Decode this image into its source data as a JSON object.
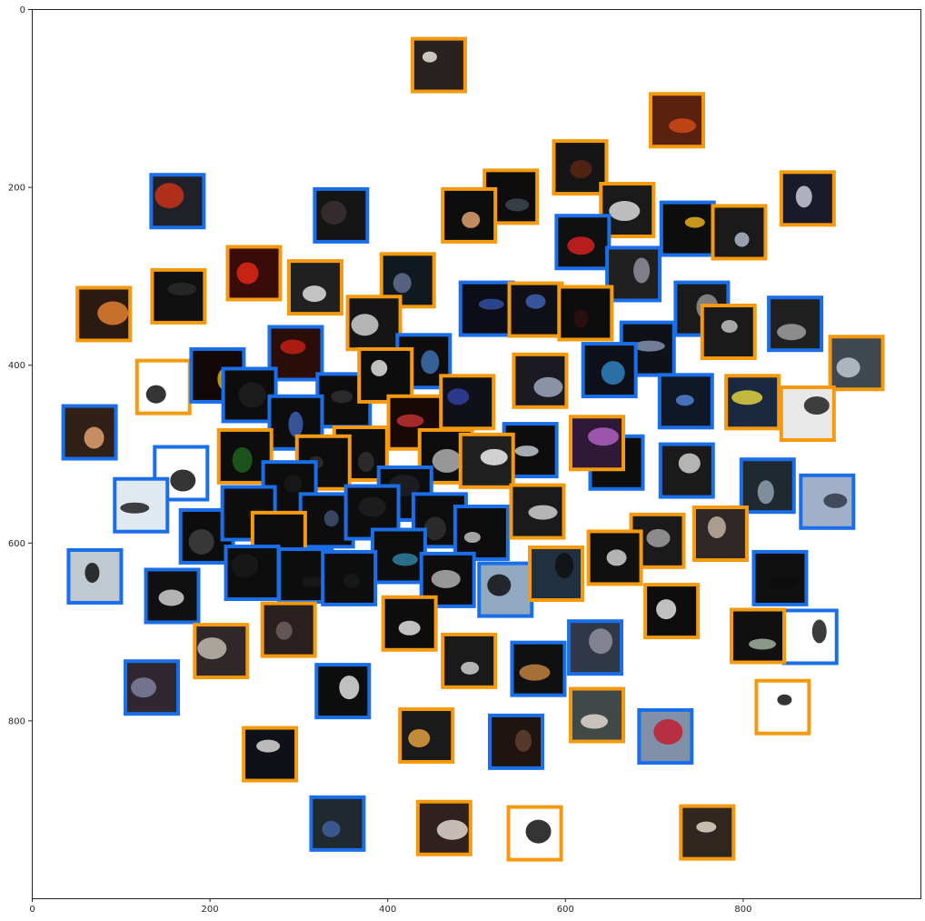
{
  "chart_data": {
    "type": "scatter",
    "title": "",
    "xlabel": "",
    "ylabel": "",
    "xlim": [
      0,
      1000
    ],
    "ylim": [
      1000,
      0
    ],
    "y_inverted": true,
    "grid": false,
    "xticks": [
      "0",
      "200",
      "400",
      "600",
      "800"
    ],
    "xtick_values": [
      0,
      200,
      400,
      600,
      800
    ],
    "yticks": [
      "0",
      "200",
      "400",
      "600",
      "800"
    ],
    "ytick_values": [
      0,
      200,
      400,
      600,
      800
    ],
    "marker": "image thumbnail with colored frame",
    "colors": {
      "blue": "#1a6fe8",
      "orange": "#f59a0f",
      "axis": "#262626"
    },
    "points": [
      {
        "x": 458,
        "y": 63,
        "c": "orange",
        "fill": "#2a2220",
        "acc": "#e8e2dc"
      },
      {
        "x": 726,
        "y": 125,
        "c": "orange",
        "fill": "#5a2010",
        "acc": "#d04a16"
      },
      {
        "x": 617,
        "y": 178,
        "c": "orange",
        "fill": "#151515",
        "acc": "#5a2414"
      },
      {
        "x": 873,
        "y": 213,
        "c": "orange",
        "fill": "#1a1a2a",
        "acc": "#c8ccd8"
      },
      {
        "x": 164,
        "y": 216,
        "c": "blue",
        "fill": "#202028",
        "acc": "#c83218"
      },
      {
        "x": 539,
        "y": 211,
        "c": "orange",
        "fill": "#0d0d0d",
        "acc": "#404650"
      },
      {
        "x": 492,
        "y": 232,
        "c": "orange",
        "fill": "#0d0d0d",
        "acc": "#e0a070"
      },
      {
        "x": 670,
        "y": 226,
        "c": "orange",
        "fill": "#1a1a1a",
        "acc": "#dcdcdc"
      },
      {
        "x": 348,
        "y": 232,
        "c": "blue",
        "fill": "#151515",
        "acc": "#3a3030"
      },
      {
        "x": 738,
        "y": 247,
        "c": "blue",
        "fill": "#0d0d0d",
        "acc": "#e8b020"
      },
      {
        "x": 796,
        "y": 251,
        "c": "orange",
        "fill": "#1a1a1a",
        "acc": "#b0b8c8"
      },
      {
        "x": 620,
        "y": 262,
        "c": "blue",
        "fill": "#101010",
        "acc": "#d42020"
      },
      {
        "x": 250,
        "y": 297,
        "c": "orange",
        "fill": "#3a0c08",
        "acc": "#e02818"
      },
      {
        "x": 677,
        "y": 298,
        "c": "blue",
        "fill": "#202020",
        "acc": "#9090a0"
      },
      {
        "x": 165,
        "y": 323,
        "c": "orange",
        "fill": "#101010",
        "acc": "#2a2a2a"
      },
      {
        "x": 319,
        "y": 313,
        "c": "orange",
        "fill": "#202020",
        "acc": "#e0e0e0"
      },
      {
        "x": 423,
        "y": 305,
        "c": "orange",
        "fill": "#101820",
        "acc": "#607090"
      },
      {
        "x": 81,
        "y": 343,
        "c": "orange",
        "fill": "#2a1a10",
        "acc": "#e08030"
      },
      {
        "x": 512,
        "y": 337,
        "c": "blue",
        "fill": "#0d0d18",
        "acc": "#3050a0"
      },
      {
        "x": 567,
        "y": 338,
        "c": "orange",
        "fill": "#101018",
        "acc": "#4060b0"
      },
      {
        "x": 623,
        "y": 342,
        "c": "orange",
        "fill": "#0d0d0d",
        "acc": "#301010"
      },
      {
        "x": 385,
        "y": 353,
        "c": "orange",
        "fill": "#151515",
        "acc": "#d0d0d0"
      },
      {
        "x": 754,
        "y": 337,
        "c": "blue",
        "fill": "#1a1a1a",
        "acc": "#909090"
      },
      {
        "x": 784,
        "y": 363,
        "c": "orange",
        "fill": "#1a1a1a",
        "acc": "#c0c0c0"
      },
      {
        "x": 859,
        "y": 354,
        "c": "blue",
        "fill": "#202020",
        "acc": "#a0a0a0"
      },
      {
        "x": 928,
        "y": 398,
        "c": "orange",
        "fill": "#404850",
        "acc": "#c0c8d0"
      },
      {
        "x": 441,
        "y": 396,
        "c": "blue",
        "fill": "#0d0d0d",
        "acc": "#4070b0"
      },
      {
        "x": 693,
        "y": 382,
        "c": "blue",
        "fill": "#101018",
        "acc": "#8090b0"
      },
      {
        "x": 297,
        "y": 387,
        "c": "blue",
        "fill": "#2a0c08",
        "acc": "#c02010"
      },
      {
        "x": 148,
        "y": 425,
        "c": "orange",
        "fill": "#ffffff",
        "acc": "#111111"
      },
      {
        "x": 209,
        "y": 412,
        "c": "blue",
        "fill": "#120808",
        "acc": "#e0b010"
      },
      {
        "x": 245,
        "y": 434,
        "c": "blue",
        "fill": "#0d0d0d",
        "acc": "#202020"
      },
      {
        "x": 351,
        "y": 440,
        "c": "blue",
        "fill": "#0d0d0d",
        "acc": "#303030"
      },
      {
        "x": 398,
        "y": 412,
        "c": "orange",
        "fill": "#0d0d0d",
        "acc": "#e0e0e0"
      },
      {
        "x": 572,
        "y": 418,
        "c": "orange",
        "fill": "#1a1a20",
        "acc": "#a0a8c0"
      },
      {
        "x": 650,
        "y": 406,
        "c": "blue",
        "fill": "#0d1018",
        "acc": "#3080c0"
      },
      {
        "x": 736,
        "y": 441,
        "c": "blue",
        "fill": "#101828",
        "acc": "#5080d0"
      },
      {
        "x": 811,
        "y": 442,
        "c": "orange",
        "fill": "#1a2840",
        "acc": "#e0d040"
      },
      {
        "x": 873,
        "y": 455,
        "c": "orange",
        "fill": "#e8e8e8",
        "acc": "#202020"
      },
      {
        "x": 65,
        "y": 476,
        "c": "blue",
        "fill": "#302018",
        "acc": "#e0a070"
      },
      {
        "x": 297,
        "y": 465,
        "c": "blue",
        "fill": "#0d0d0d",
        "acc": "#4060b0"
      },
      {
        "x": 431,
        "y": 465,
        "c": "orange",
        "fill": "#180808",
        "acc": "#c03030"
      },
      {
        "x": 490,
        "y": 442,
        "c": "orange",
        "fill": "#101018",
        "acc": "#3040a0"
      },
      {
        "x": 370,
        "y": 500,
        "c": "orange",
        "fill": "#0d0d0d",
        "acc": "#303030"
      },
      {
        "x": 466,
        "y": 503,
        "c": "orange",
        "fill": "#0d0d0d",
        "acc": "#b0b0b0"
      },
      {
        "x": 561,
        "y": 496,
        "c": "blue",
        "fill": "#0d0d0d",
        "acc": "#c0c8d0"
      },
      {
        "x": 658,
        "y": 510,
        "c": "blue",
        "fill": "#0d0d0d",
        "acc": "#8890a0"
      },
      {
        "x": 636,
        "y": 488,
        "c": "orange",
        "fill": "#301838",
        "acc": "#b060c0"
      },
      {
        "x": 168,
        "y": 522,
        "c": "blue",
        "fill": "#ffffff",
        "acc": "#111111"
      },
      {
        "x": 240,
        "y": 503,
        "c": "orange",
        "fill": "#0d0d0d",
        "acc": "#206020"
      },
      {
        "x": 328,
        "y": 510,
        "c": "orange",
        "fill": "#0d0d0d",
        "acc": "#303030"
      },
      {
        "x": 512,
        "y": 508,
        "c": "orange",
        "fill": "#202020",
        "acc": "#f0f0f0"
      },
      {
        "x": 737,
        "y": 519,
        "c": "blue",
        "fill": "#1a1a1a",
        "acc": "#d0d0d0"
      },
      {
        "x": 828,
        "y": 536,
        "c": "blue",
        "fill": "#202830",
        "acc": "#90a0b0"
      },
      {
        "x": 123,
        "y": 558,
        "c": "blue",
        "fill": "#e0e8f0",
        "acc": "#202020"
      },
      {
        "x": 895,
        "y": 554,
        "c": "blue",
        "fill": "#a0b0c8",
        "acc": "#303848"
      },
      {
        "x": 290,
        "y": 539,
        "c": "blue",
        "fill": "#0d0d0d",
        "acc": "#1a1a1a"
      },
      {
        "x": 420,
        "y": 545,
        "c": "blue",
        "fill": "#0d0d0d",
        "acc": "#202028"
      },
      {
        "x": 197,
        "y": 593,
        "c": "blue",
        "fill": "#0d0d0d",
        "acc": "#404040"
      },
      {
        "x": 244,
        "y": 567,
        "c": "blue",
        "fill": "#0d0d0d",
        "acc": "#1a1a1a"
      },
      {
        "x": 332,
        "y": 575,
        "c": "blue",
        "fill": "#0d0d0d",
        "acc": "#405070"
      },
      {
        "x": 383,
        "y": 566,
        "c": "blue",
        "fill": "#0d0d0d",
        "acc": "#202020"
      },
      {
        "x": 459,
        "y": 575,
        "c": "blue",
        "fill": "#0d0d0d",
        "acc": "#303030"
      },
      {
        "x": 506,
        "y": 589,
        "c": "blue",
        "fill": "#0d0d0d",
        "acc": "#c0c0c0"
      },
      {
        "x": 569,
        "y": 565,
        "c": "orange",
        "fill": "#1a1a1a",
        "acc": "#d0d0d0"
      },
      {
        "x": 704,
        "y": 598,
        "c": "orange",
        "fill": "#1a1a1a",
        "acc": "#a0a0a0"
      },
      {
        "x": 775,
        "y": 590,
        "c": "orange",
        "fill": "#302828",
        "acc": "#c0b0a0"
      },
      {
        "x": 278,
        "y": 596,
        "c": "orange",
        "fill": "#0d0d0d",
        "acc": "#0d0d0d"
      },
      {
        "x": 413,
        "y": 615,
        "c": "blue",
        "fill": "#0d0d0d",
        "acc": "#3080a0"
      },
      {
        "x": 656,
        "y": 617,
        "c": "orange",
        "fill": "#101010",
        "acc": "#d0d0d0"
      },
      {
        "x": 71,
        "y": 638,
        "c": "blue",
        "fill": "#c0c8d0",
        "acc": "#111111"
      },
      {
        "x": 248,
        "y": 634,
        "c": "blue",
        "fill": "#0d0d0d",
        "acc": "#1a1a1a"
      },
      {
        "x": 308,
        "y": 637,
        "c": "blue",
        "fill": "#0d0d0d",
        "acc": "#1a1a1a"
      },
      {
        "x": 357,
        "y": 640,
        "c": "blue",
        "fill": "#0d0d0d",
        "acc": "#1a1a1a"
      },
      {
        "x": 468,
        "y": 642,
        "c": "blue",
        "fill": "#0d0d0d",
        "acc": "#b0b0b0"
      },
      {
        "x": 533,
        "y": 653,
        "c": "blue",
        "fill": "#90a8c0",
        "acc": "#101010"
      },
      {
        "x": 590,
        "y": 635,
        "c": "orange",
        "fill": "#203040",
        "acc": "#101010"
      },
      {
        "x": 842,
        "y": 640,
        "c": "blue",
        "fill": "#101010",
        "acc": "#0d0d0d"
      },
      {
        "x": 158,
        "y": 660,
        "c": "blue",
        "fill": "#101010",
        "acc": "#d0d0d0"
      },
      {
        "x": 720,
        "y": 677,
        "c": "orange",
        "fill": "#0d0d0d",
        "acc": "#e0e0e0"
      },
      {
        "x": 876,
        "y": 706,
        "c": "blue",
        "fill": "#ffffff",
        "acc": "#1a1a1a"
      },
      {
        "x": 817,
        "y": 705,
        "c": "orange",
        "fill": "#101010",
        "acc": "#a0b0a0"
      },
      {
        "x": 425,
        "y": 691,
        "c": "orange",
        "fill": "#0d0d0d",
        "acc": "#e0e0e0"
      },
      {
        "x": 289,
        "y": 698,
        "c": "orange",
        "fill": "#2a2020",
        "acc": "#706060"
      },
      {
        "x": 213,
        "y": 722,
        "c": "orange",
        "fill": "#302828",
        "acc": "#c0b8b0"
      },
      {
        "x": 634,
        "y": 718,
        "c": "blue",
        "fill": "#303848",
        "acc": "#9090a0"
      },
      {
        "x": 492,
        "y": 733,
        "c": "orange",
        "fill": "#1a1a1a",
        "acc": "#d0d0d0"
      },
      {
        "x": 570,
        "y": 742,
        "c": "blue",
        "fill": "#101010",
        "acc": "#c08040"
      },
      {
        "x": 135,
        "y": 763,
        "c": "blue",
        "fill": "#302830",
        "acc": "#8080a0"
      },
      {
        "x": 350,
        "y": 767,
        "c": "blue",
        "fill": "#0d0d0d",
        "acc": "#e0e0e0"
      },
      {
        "x": 845,
        "y": 785,
        "c": "orange",
        "fill": "#ffffff",
        "acc": "#101010"
      },
      {
        "x": 636,
        "y": 794,
        "c": "orange",
        "fill": "#404848",
        "acc": "#e0d8d0"
      },
      {
        "x": 444,
        "y": 817,
        "c": "orange",
        "fill": "#1a1a1a",
        "acc": "#e0a040"
      },
      {
        "x": 545,
        "y": 824,
        "c": "blue",
        "fill": "#201410",
        "acc": "#604030"
      },
      {
        "x": 713,
        "y": 818,
        "c": "blue",
        "fill": "#8090a8",
        "acc": "#c02030"
      },
      {
        "x": 268,
        "y": 838,
        "c": "orange",
        "fill": "#101018",
        "acc": "#d8d8d8"
      },
      {
        "x": 344,
        "y": 916,
        "c": "blue",
        "fill": "#202830",
        "acc": "#4060a0"
      },
      {
        "x": 464,
        "y": 921,
        "c": "orange",
        "fill": "#302020",
        "acc": "#e0d8d0"
      },
      {
        "x": 566,
        "y": 927,
        "c": "orange",
        "fill": "#ffffff",
        "acc": "#101010"
      },
      {
        "x": 760,
        "y": 926,
        "c": "orange",
        "fill": "#302820",
        "acc": "#e0d8c8"
      }
    ]
  }
}
